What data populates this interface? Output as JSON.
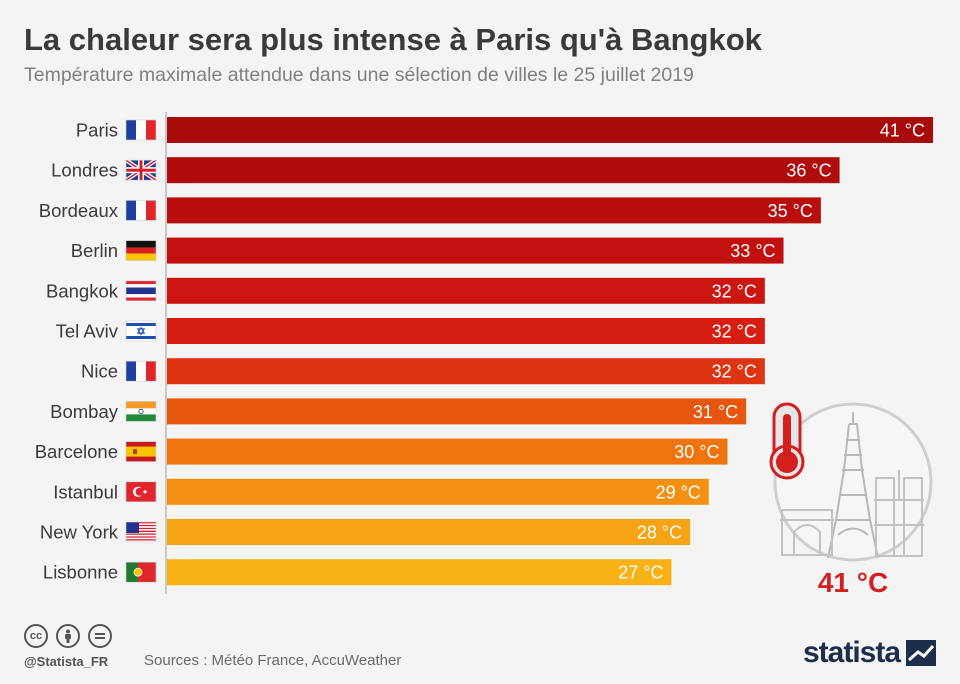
{
  "header": {
    "title": "La chaleur sera plus intense à Paris qu'à Bangkok",
    "subtitle": "Température maximale attendue dans une sélection de villes le 25 juillet 2019"
  },
  "chart_data": {
    "type": "bar",
    "orientation": "horizontal",
    "title": "La chaleur sera plus intense à Paris qu'à Bangkok",
    "subtitle": "Température maximale attendue dans une sélection de villes le 25 juillet 2019",
    "categories": [
      "Paris",
      "Londres",
      "Bordeaux",
      "Berlin",
      "Bangkok",
      "Tel Aviv",
      "Nice",
      "Bombay",
      "Barcelone",
      "Istanbul",
      "New York",
      "Lisbonne"
    ],
    "values": [
      41,
      36,
      35,
      33,
      32,
      32,
      32,
      31,
      30,
      29,
      28,
      27
    ],
    "value_labels": [
      "41 °C",
      "36 °C",
      "35 °C",
      "33 °C",
      "32 °C",
      "32 °C",
      "32 °C",
      "31 °C",
      "30 °C",
      "29 °C",
      "28 °C",
      "27 °C"
    ],
    "flags": [
      "france",
      "uk",
      "france",
      "germany",
      "thailand",
      "israel",
      "france",
      "india",
      "spain",
      "turkey",
      "usa",
      "portugal"
    ],
    "bar_colors": [
      "#a80b0b",
      "#b10c0c",
      "#b80e0e",
      "#c21010",
      "#cc1612",
      "#d61f12",
      "#dd3512",
      "#e6560f",
      "#ef7410",
      "#f38f12",
      "#f6a413",
      "#f8b215"
    ],
    "xlabel": "",
    "ylabel": "",
    "xlim": [
      0,
      41
    ],
    "grid": false,
    "legend": "none",
    "annotation": {
      "text": "41 °C",
      "color": "#d41f1f",
      "icons": [
        "thermometer-icon",
        "paris-monuments-icon"
      ]
    }
  },
  "footer": {
    "license_icons": [
      "cc",
      "by",
      "="
    ],
    "handle": "@Statista_FR",
    "sources": "Sources : Météo France, AccuWeather",
    "brand": "statista"
  }
}
